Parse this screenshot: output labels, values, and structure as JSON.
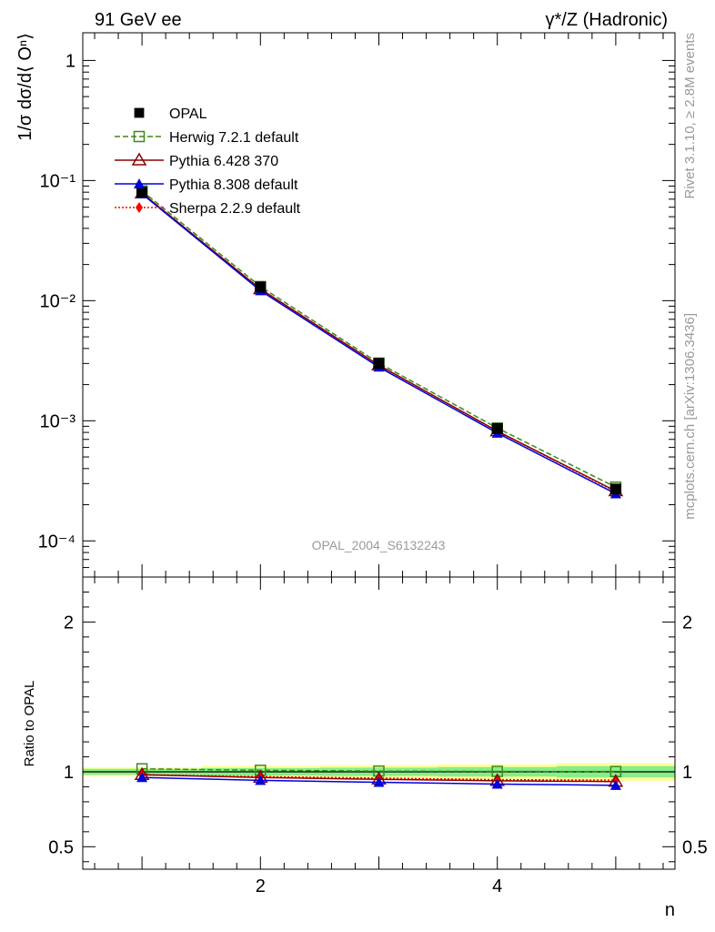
{
  "header": {
    "left": "91 GeV ee",
    "right": "γ*/Z (Hadronic)"
  },
  "side_labels": {
    "rivet": "Rivet 3.1.10, ≥ 2.8M events",
    "mcplots": "mcplots.cern.ch [arXiv:1306.3436]"
  },
  "watermark": "OPAL_2004_S6132243",
  "colors": {
    "opal": "#000000",
    "herwig": "#3a8a1a",
    "pythia6": "#8b0000",
    "pythia8": "#0000dd",
    "sherpa": "#ff0000",
    "band_yellow": "#ffff99",
    "band_green": "#88ee88"
  },
  "chart_data": [
    {
      "type": "line",
      "ylabel": "1/σ dσ/d⟨ Oⁿ⟩",
      "yscale": "log",
      "ylim": [
        5e-05,
        1.7
      ],
      "xlim": [
        0.5,
        5.5
      ],
      "y_ticks": [
        {
          "v": 1,
          "label": "1"
        },
        {
          "v": 0.1,
          "label": "10⁻¹"
        },
        {
          "v": 0.01,
          "label": "10⁻²"
        },
        {
          "v": 0.001,
          "label": "10⁻³"
        },
        {
          "v": 0.0001,
          "label": "10⁻⁴"
        }
      ],
      "legend_position": "top-left",
      "x": [
        1,
        2,
        3,
        4,
        5
      ],
      "series": [
        {
          "key": "opal",
          "name": "OPAL",
          "values": [
            0.08,
            0.013,
            0.003,
            0.00086,
            0.00027
          ]
        },
        {
          "key": "herwig",
          "name": "Herwig 7.2.1 default",
          "values": [
            0.082,
            0.0131,
            0.00302,
            0.00087,
            0.00028
          ]
        },
        {
          "key": "pythia6",
          "name": "Pythia 6.428 370",
          "values": [
            0.0785,
            0.0125,
            0.0029,
            0.00082,
            0.00026
          ]
        },
        {
          "key": "pythia8",
          "name": "Pythia 8.308 default",
          "values": [
            0.0775,
            0.0121,
            0.0028,
            0.00079,
            0.000247
          ]
        },
        {
          "key": "sherpa",
          "name": "Sherpa 2.2.9 default",
          "values": [
            0.0785,
            0.0125,
            0.0029,
            0.00082,
            0.000257
          ]
        }
      ]
    },
    {
      "type": "line",
      "ylabel": "Ratio to OPAL",
      "xlabel": "n",
      "ylim": [
        0.35,
        2.3
      ],
      "xlim": [
        0.5,
        5.5
      ],
      "y_ticks": [
        {
          "v": 2,
          "label": "2"
        },
        {
          "v": 1,
          "label": "1"
        },
        {
          "v": 0.5,
          "label": "0.5"
        }
      ],
      "x_ticks": [
        {
          "v": 2,
          "label": "2"
        },
        {
          "v": 4,
          "label": "4"
        }
      ],
      "bands": [
        {
          "x0": 0.5,
          "x1": 1.5,
          "yellow": [
            0.97,
            1.03
          ],
          "green": [
            0.98,
            1.02
          ]
        },
        {
          "x0": 1.5,
          "x1": 2.5,
          "yellow": [
            0.96,
            1.04
          ],
          "green": [
            0.975,
            1.025
          ]
        },
        {
          "x0": 2.5,
          "x1": 3.5,
          "yellow": [
            0.955,
            1.045
          ],
          "green": [
            0.972,
            1.028
          ]
        },
        {
          "x0": 3.5,
          "x1": 4.5,
          "yellow": [
            0.95,
            1.05
          ],
          "green": [
            0.968,
            1.032
          ]
        },
        {
          "x0": 4.5,
          "x1": 5.5,
          "yellow": [
            0.94,
            1.06
          ],
          "green": [
            0.962,
            1.038
          ]
        }
      ],
      "x": [
        1,
        2,
        3,
        4,
        5
      ],
      "series": [
        {
          "key": "herwig",
          "name": "Herwig 7.2.1 default",
          "values": [
            1.02,
            1.01,
            1.005,
            1.003,
            1.002
          ]
        },
        {
          "key": "pythia6",
          "name": "Pythia 6.428 370",
          "values": [
            0.98,
            0.962,
            0.95,
            0.94,
            0.935
          ]
        },
        {
          "key": "pythia8",
          "name": "Pythia 8.308 default",
          "values": [
            0.962,
            0.943,
            0.93,
            0.918,
            0.91
          ]
        },
        {
          "key": "sherpa",
          "name": "Sherpa 2.2.9 default",
          "values": [
            0.98,
            0.968,
            0.958,
            0.948,
            0.944
          ]
        }
      ]
    }
  ]
}
